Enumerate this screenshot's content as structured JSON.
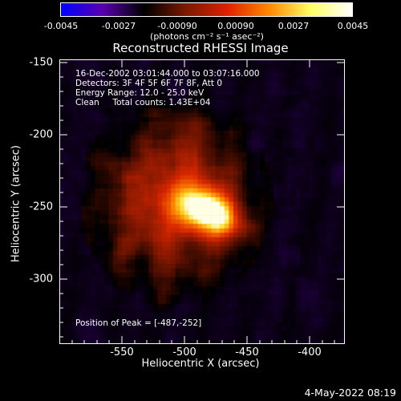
{
  "colorbar": {
    "ticks": [
      "-0.0045",
      "-0.0027",
      "-0.00090",
      "0.00090",
      "0.0027",
      "0.0045"
    ],
    "units": "(photons cm⁻² s⁻¹ asec⁻²)",
    "colormap": [
      "#0000ff",
      "#5a00b0",
      "#000000",
      "#7a1a00",
      "#e02000",
      "#ff8800",
      "#ffff66",
      "#ffffff"
    ]
  },
  "title": "Reconstructed RHESSI Image",
  "info": {
    "line1": "16-Dec-2002 03:01:44.000 to 03:07:16.000",
    "line2": "Detectors: 3F 4F 5F 6F 7F 8F, Att 0",
    "line3": "Energy Range: 12.0 - 25.0 keV",
    "line4": "Clean     Total counts: 1.43E+04"
  },
  "peak_text": "Position of Peak = [-487,-252]",
  "axes": {
    "xlabel": "Heliocentric X (arcsec)",
    "ylabel": "Heliocentric Y (arcsec)",
    "xticks": [
      "-550",
      "-500",
      "-450",
      "-400"
    ],
    "yticks": [
      "-150",
      "-200",
      "-250",
      "-300"
    ],
    "xlim": [
      -583,
      -395
    ],
    "ylim": [
      -340,
      -145
    ]
  },
  "datestamp": "4-May-2022 08:19"
}
